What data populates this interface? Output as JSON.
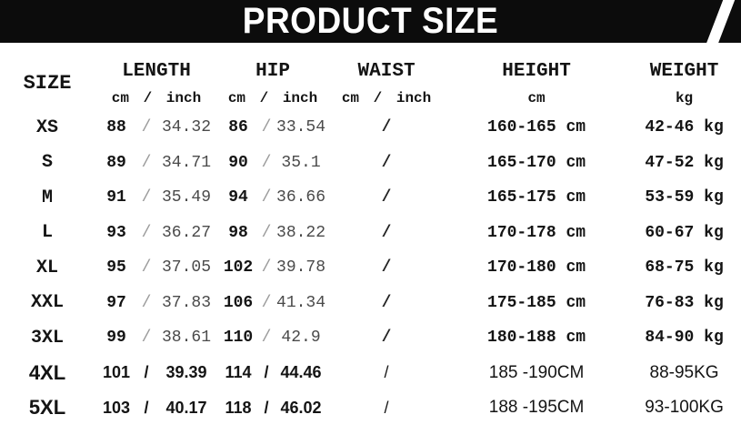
{
  "banner": {
    "title": "PRODUCT SIZE",
    "bg_color": "#0c0c0c",
    "text_color": "#ffffff"
  },
  "table": {
    "separator": "/",
    "columns": {
      "size": {
        "label": "SIZE"
      },
      "length": {
        "label": "LENGTH",
        "sub": "cm / inch"
      },
      "hip": {
        "label": "HIP",
        "sub": "cm / inch"
      },
      "waist": {
        "label": "WAIST",
        "sub": "cm / inch"
      },
      "height": {
        "label": "HEIGHT",
        "sub": "cm"
      },
      "weight": {
        "label": "WEIGHT",
        "sub": "kg"
      }
    },
    "rows": [
      {
        "size": "XS",
        "length_cm": "88",
        "length_inch": "34.32",
        "hip_cm": "86",
        "hip_inch": "33.54",
        "waist": "/",
        "height": "160-165 cm",
        "weight": "42-46 kg"
      },
      {
        "size": "S",
        "length_cm": "89",
        "length_inch": "34.71",
        "hip_cm": "90",
        "hip_inch": "35.1",
        "waist": "/",
        "height": "165-170 cm",
        "weight": "47-52 kg"
      },
      {
        "size": "M",
        "length_cm": "91",
        "length_inch": "35.49",
        "hip_cm": "94",
        "hip_inch": "36.66",
        "waist": "/",
        "height": "165-175 cm",
        "weight": "53-59 kg"
      },
      {
        "size": "L",
        "length_cm": "93",
        "length_inch": "36.27",
        "hip_cm": "98",
        "hip_inch": "38.22",
        "waist": "/",
        "height": "170-178 cm",
        "weight": "60-67 kg"
      },
      {
        "size": "XL",
        "length_cm": "95",
        "length_inch": "37.05",
        "hip_cm": "102",
        "hip_inch": "39.78",
        "waist": "/",
        "height": "170-180 cm",
        "weight": "68-75 kg"
      },
      {
        "size": "XXL",
        "length_cm": "97",
        "length_inch": "37.83",
        "hip_cm": "106",
        "hip_inch": "41.34",
        "waist": "/",
        "height": "175-185 cm",
        "weight": "76-83 kg"
      },
      {
        "size": "3XL",
        "length_cm": "99",
        "length_inch": "38.61",
        "hip_cm": "110",
        "hip_inch": "42.9",
        "waist": "/",
        "height": "180-188 cm",
        "weight": "84-90 kg"
      },
      {
        "size": "4XL",
        "length_cm": "101",
        "length_inch": "39.39",
        "hip_cm": "114",
        "hip_inch": "44.46",
        "waist": "/",
        "height": "185 -190CM",
        "weight": "88-95KG"
      },
      {
        "size": "5XL",
        "length_cm": "103",
        "length_inch": "40.17",
        "hip_cm": "118",
        "hip_inch": "46.02",
        "waist": "/",
        "height": "188 -195CM",
        "weight": "93-100KG"
      }
    ]
  }
}
